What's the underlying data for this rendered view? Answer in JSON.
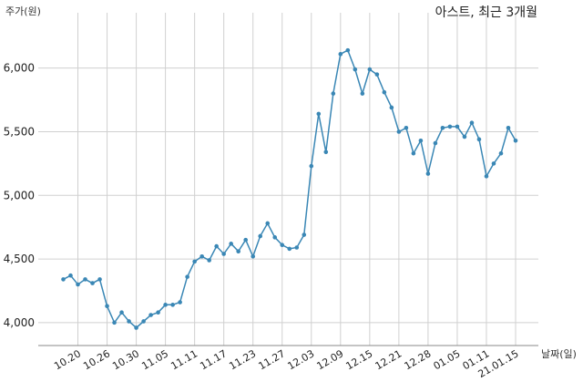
{
  "chart_data": {
    "type": "line",
    "title": "아스트, 최근 3개월",
    "ylabel": "주가(원)",
    "xlabel": "날짜(일)",
    "ylim": [
      3820,
      6320
    ],
    "yticks": [
      4000,
      4500,
      5000,
      5500,
      6000
    ],
    "ytick_labels": [
      "4,000",
      "4,500",
      "5,000",
      "5,500",
      "6,000"
    ],
    "grid": true,
    "line_color": "#3a87b5",
    "x_tick_indices": [
      2,
      6,
      10,
      14,
      18,
      22,
      26,
      30,
      34,
      38,
      42,
      46,
      50,
      54,
      58,
      62
    ],
    "x_tick_labels": [
      "10.20",
      "10.26",
      "10.30",
      "11.05",
      "11.11",
      "11.17",
      "11.23",
      "11.27",
      "12.03",
      "12.09",
      "12.15",
      "12.21",
      "12.28",
      "01.05",
      "01.11",
      "21.01.15"
    ],
    "series": [
      {
        "values": [
          4340,
          4370,
          4300,
          4340,
          4310,
          4340,
          4130,
          4000,
          4080,
          4010,
          3960,
          4010,
          4060,
          4080,
          4140,
          4140,
          4160,
          4360,
          4480,
          4520,
          4490,
          4600,
          4540,
          4620,
          4560,
          4650,
          4520,
          4680,
          4780,
          4670,
          4610,
          4580,
          4590,
          4690,
          5230,
          5640,
          5340,
          5800,
          6110,
          6140,
          5990,
          5800,
          5990,
          5950,
          5810,
          5690,
          5500,
          5530,
          5330,
          5430,
          5170,
          5410,
          5530,
          5540,
          5540,
          5460,
          5570,
          5440,
          5150,
          5250,
          5330,
          5530,
          5430
        ]
      }
    ]
  }
}
